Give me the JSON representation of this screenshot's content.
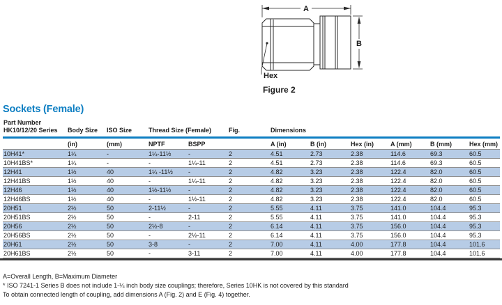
{
  "colors": {
    "accent_blue": "#0d7ec2",
    "row_alt_blue": "#b7cce6"
  },
  "figure": {
    "caption": "Figure 2",
    "dim_a_label": "A",
    "dim_b_label": "B",
    "hex_label": "Hex"
  },
  "section": {
    "title": "Sockets (Female)"
  },
  "table": {
    "header": {
      "part_number_line1": "Part Number",
      "part_number_line2": "HK10/12/20 Series",
      "body_size": "Body Size",
      "iso_size": "ISO Size",
      "thread_size": "Thread Size (Female)",
      "fig": "Fig.",
      "dimensions": "Dimensions",
      "sub": {
        "in": "(in)",
        "mm": "(mm)",
        "nptf": "NPTF",
        "bspp": "BSPP",
        "a_in": "A (in)",
        "b_in": "B (in)",
        "hex_in": "Hex (in)",
        "a_mm": "A (mm)",
        "b_mm": "B (mm)",
        "hex_mm": "Hex (mm)"
      }
    },
    "rows": [
      [
        "10H41*",
        "1¼",
        "-",
        "1¼-11½",
        "-",
        "2",
        "4.51",
        "2.73",
        "2.38",
        "114.6",
        "69.3",
        "60.5"
      ],
      [
        "10H41BS*",
        "1¼",
        "-",
        "-",
        "1¼-11",
        "2",
        "4.51",
        "2.73",
        "2.38",
        "114.6",
        "69.3",
        "60.5"
      ],
      [
        "12H41",
        "1½",
        "40",
        "1¼ -11½",
        "-",
        "2",
        "4.82",
        "3.23",
        "2.38",
        "122.4",
        "82.0",
        "60.5"
      ],
      [
        "12H41BS",
        "1½",
        "40",
        "-",
        "1¼-11",
        "2",
        "4.82",
        "3.23",
        "2.38",
        "122.4",
        "82.0",
        "60.5"
      ],
      [
        "12H46",
        "1½",
        "40",
        "1½-11½",
        "-",
        "2",
        "4.82",
        "3.23",
        "2.38",
        "122.4",
        "82.0",
        "60.5"
      ],
      [
        "12H46BS",
        "1½",
        "40",
        "-",
        "1½-11",
        "2",
        "4.82",
        "3.23",
        "2.38",
        "122.4",
        "82.0",
        "60.5"
      ],
      [
        "20H51",
        "2½",
        "50",
        "2-11½",
        "-",
        "2",
        "5.55",
        "4.11",
        "3.75",
        "141.0",
        "104.4",
        "95.3"
      ],
      [
        "20H51BS",
        "2½",
        "50",
        "-",
        "2-11",
        "2",
        "5.55",
        "4.11",
        "3.75",
        "141.0",
        "104.4",
        "95.3"
      ],
      [
        "20H56",
        "2½",
        "50",
        "2½-8",
        "-",
        "2",
        "6.14",
        "4.11",
        "3.75",
        "156.0",
        "104.4",
        "95.3"
      ],
      [
        "20H56BS",
        "2½",
        "50",
        "-",
        "2½-11",
        "2",
        "6.14",
        "4.11",
        "3.75",
        "156.0",
        "104.4",
        "95.3"
      ],
      [
        "20H61",
        "2½",
        "50",
        "3-8",
        "-",
        "2",
        "7.00",
        "4.11",
        "4.00",
        "177.8",
        "104.4",
        "101.6"
      ],
      [
        "20H61BS",
        "2½",
        "50",
        "-",
        "3-11",
        "2",
        "7.00",
        "4.11",
        "4.00",
        "177.8",
        "104.4",
        "101.6"
      ]
    ]
  },
  "notes": [
    "A=Overall Length, B=Maximum Diameter",
    "* ISO 7241-1 Series B does not include 1-¼ inch body size couplings; therefore, Series 10HK is not covered by this standard",
    "To obtain connected length of coupling, add dimensions A (Fig. 2) and E (Fig. 4) together."
  ]
}
